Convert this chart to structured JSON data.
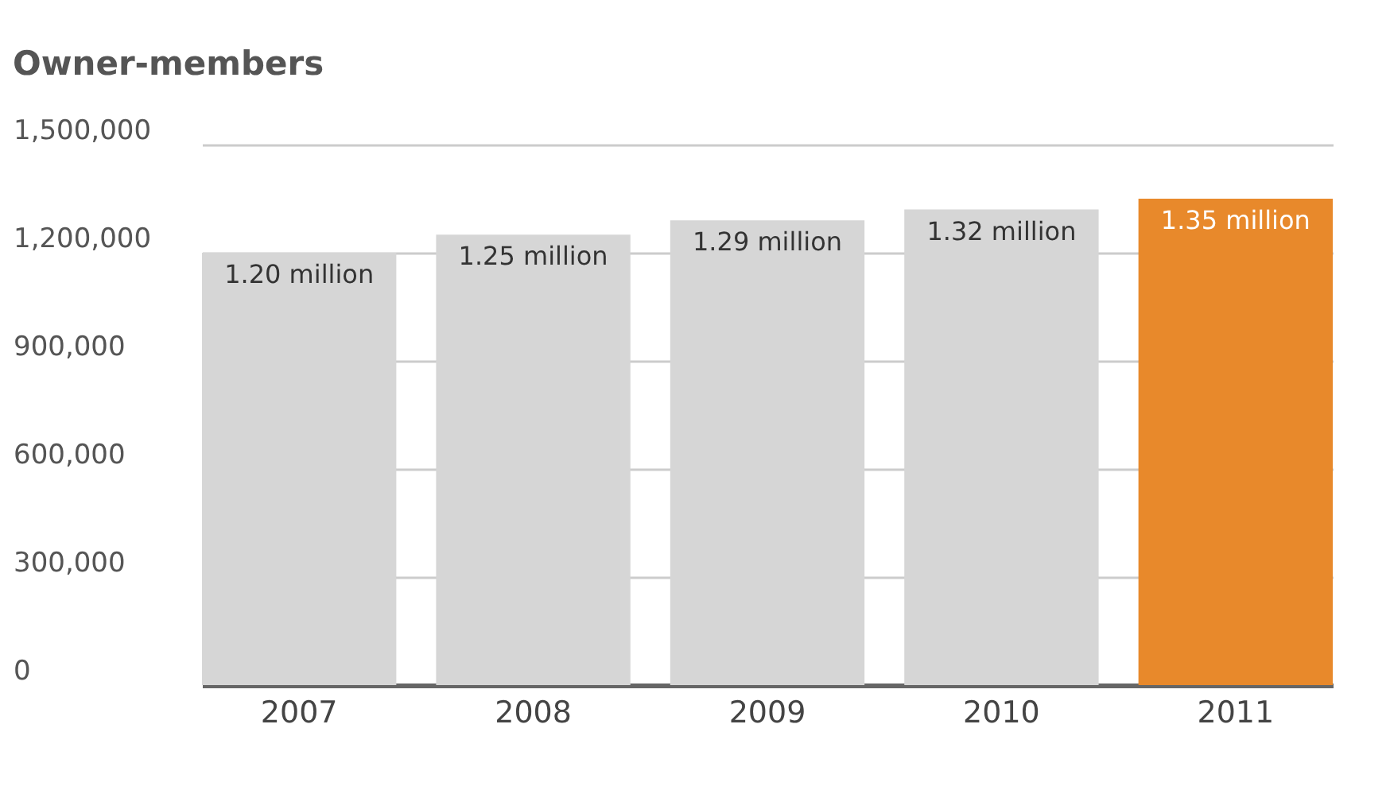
{
  "chart_data": {
    "type": "bar",
    "title": "Owner-members",
    "categories": [
      "2007",
      "2008",
      "2009",
      "2010",
      "2011"
    ],
    "values": [
      1200000,
      1250000,
      1290000,
      1320000,
      1350000
    ],
    "colors": [
      "#d6d6d6",
      "#d6d6d6",
      "#d6d6d6",
      "#d6d6d6",
      "#e8892b"
    ],
    "value_labels": [
      "1.20 million",
      "1.25 million",
      "1.29 million",
      "1.32 million",
      "1.35 million"
    ],
    "ylim": [
      0,
      1500000
    ],
    "yticks": [
      0,
      {
        "value": 300000,
        "label": "300,000"
      },
      {
        "value": 600000,
        "label": "600,000"
      },
      {
        "value": 900000,
        "label": "900,000"
      },
      {
        "value": 1200000,
        "label": "1,200,000"
      },
      {
        "value": 1500000,
        "label": "1,500,000"
      }
    ],
    "grid": "y"
  }
}
